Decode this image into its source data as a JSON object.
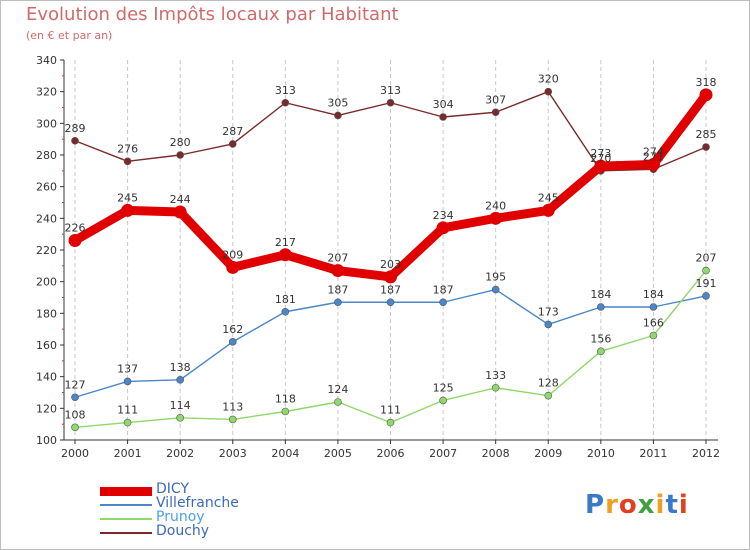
{
  "header": {
    "title": "Evolution des Impôts locaux par Habitant",
    "subtitle": "(en € et par an)"
  },
  "logo": {
    "text": "Proxiti",
    "colors": [
      "#3a78c8",
      "#f0a020",
      "#e04020",
      "#40a040",
      "#f0a020",
      "#3a78c8",
      "#e04020"
    ]
  },
  "chart_data": {
    "type": "line",
    "title": "Evolution des Impôts locaux par Habitant",
    "subtitle": "(en € et par an)",
    "xlabel": "",
    "ylabel": "",
    "ylim": [
      100,
      340
    ],
    "yticks": [
      100,
      120,
      140,
      160,
      180,
      200,
      220,
      240,
      260,
      280,
      300,
      320,
      340
    ],
    "x": [
      "2000",
      "2001",
      "2002",
      "2003",
      "2004",
      "2005",
      "2006",
      "2007",
      "2008",
      "2009",
      "2010",
      "2011",
      "2012"
    ],
    "grid": "vertical dashed",
    "legend_position": "bottom-left",
    "series": [
      {
        "name": "DICY",
        "color": "#e00000",
        "values": [
          226,
          245,
          244,
          209,
          217,
          207,
          203,
          234,
          240,
          245,
          273,
          274,
          318
        ]
      },
      {
        "name": "Villefranche",
        "color": "#4a86c8",
        "values": [
          127,
          137,
          138,
          162,
          181,
          187,
          187,
          187,
          195,
          173,
          184,
          184,
          191
        ]
      },
      {
        "name": "Prunoy",
        "color": "#8fd86a",
        "values": [
          108,
          111,
          114,
          113,
          118,
          124,
          111,
          125,
          133,
          128,
          156,
          166,
          207
        ]
      },
      {
        "name": "Douchy",
        "color": "#7a2a2a",
        "values": [
          289,
          276,
          280,
          287,
          313,
          305,
          313,
          304,
          307,
          320,
          270,
          271,
          285
        ]
      }
    ]
  }
}
